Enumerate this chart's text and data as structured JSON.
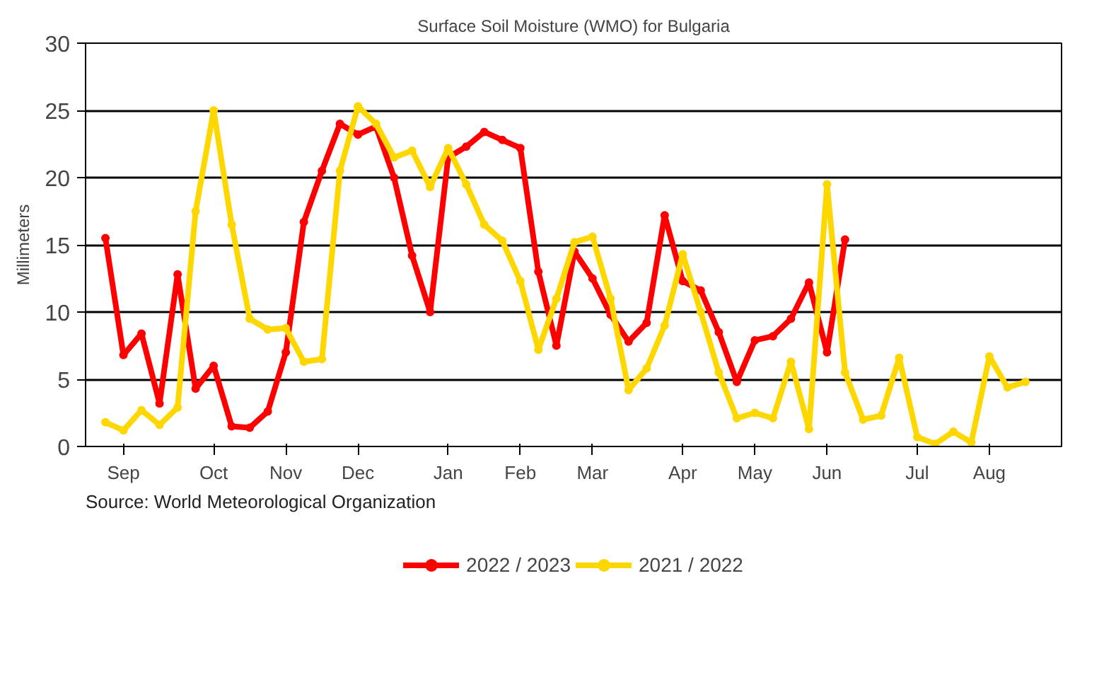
{
  "chart_data": {
    "type": "line",
    "title": "Surface Soil Moisture (WMO) for Bulgaria",
    "ylabel": "Millimeters",
    "annotations": [
      "Source: World Meteorological Organization"
    ],
    "categories": [
      null,
      "Sep",
      null,
      null,
      null,
      null,
      "Oct",
      null,
      null,
      null,
      "Nov",
      null,
      null,
      null,
      "Dec",
      null,
      null,
      null,
      null,
      "Jan",
      null,
      null,
      null,
      "Feb",
      null,
      null,
      null,
      "Mar",
      null,
      null,
      null,
      null,
      "Apr",
      null,
      null,
      null,
      "May",
      null,
      null,
      null,
      "Jun",
      null,
      null,
      null,
      null,
      "Jul",
      null,
      null,
      null,
      "Aug",
      null,
      null
    ],
    "ylim": [
      0,
      30
    ],
    "yticks": [
      0,
      5,
      10,
      15,
      20,
      25,
      30
    ],
    "grid": "y",
    "legend": "bottom",
    "marker": "circle",
    "line_style": "solid",
    "series": [
      {
        "name": "2022 / 2023",
        "color": "#ff0000",
        "values": [
          15.5,
          6.8,
          8.4,
          3.2,
          12.8,
          4.3,
          6.0,
          1.5,
          1.4,
          2.6,
          7.0,
          16.7,
          20.5,
          24.0,
          23.2,
          23.8,
          20.0,
          14.2,
          10.0,
          21.5,
          22.3,
          23.4,
          22.8,
          22.2,
          13.0,
          7.5,
          14.5,
          12.5,
          9.8,
          7.8,
          9.2,
          17.2,
          12.3,
          11.6,
          8.5,
          4.8,
          7.9,
          8.2,
          9.5,
          12.2,
          7.0,
          15.4,
          null,
          null,
          null,
          null,
          null,
          null,
          null,
          null,
          null,
          null
        ]
      },
      {
        "name": "2021 / 2022",
        "color": "#ffd700",
        "values": [
          1.8,
          1.2,
          2.7,
          1.6,
          2.9,
          17.5,
          25.0,
          16.5,
          9.5,
          8.7,
          8.8,
          6.3,
          6.5,
          20.5,
          25.3,
          24.0,
          21.5,
          22.0,
          19.3,
          22.2,
          19.5,
          16.5,
          15.3,
          12.3,
          7.2,
          11.0,
          15.2,
          15.6,
          11.0,
          4.2,
          5.8,
          9.0,
          14.3,
          10.0,
          5.5,
          2.1,
          2.5,
          2.1,
          6.3,
          1.3,
          19.5,
          5.5,
          2.0,
          2.3,
          6.6,
          0.7,
          0.2,
          1.1,
          0.3,
          6.7,
          4.4,
          4.8
        ]
      }
    ]
  }
}
